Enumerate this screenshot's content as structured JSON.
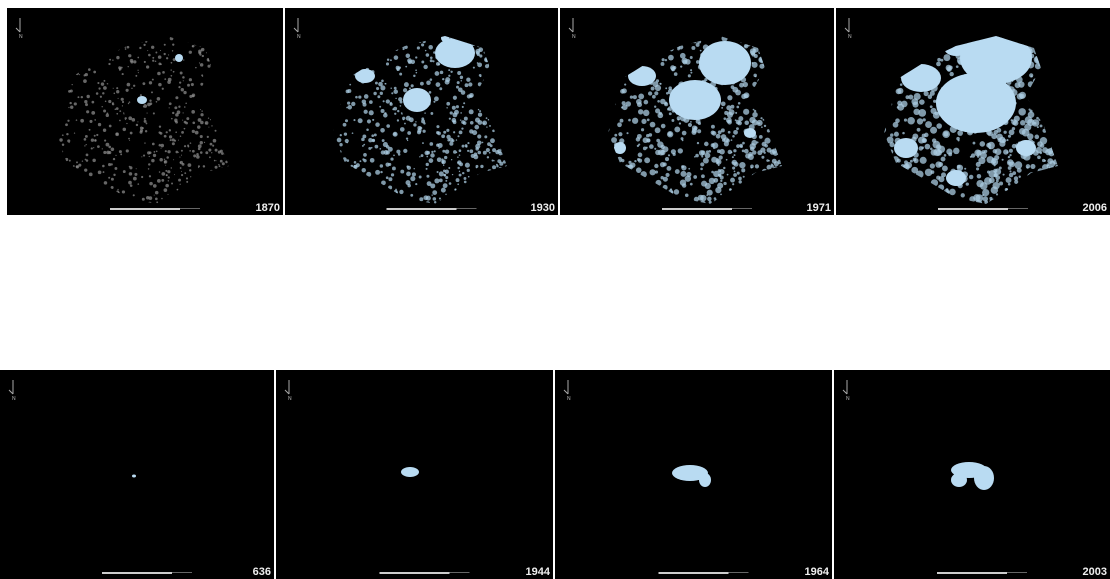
{
  "rows": [
    {
      "panels": [
        {
          "year": "1870"
        },
        {
          "year": "1930"
        },
        {
          "year": "1971"
        },
        {
          "year": "2006"
        }
      ]
    },
    {
      "panels": [
        {
          "year": "636"
        },
        {
          "year": "1944"
        },
        {
          "year": "1964"
        },
        {
          "year": "2003"
        }
      ]
    }
  ],
  "north_label": "N"
}
